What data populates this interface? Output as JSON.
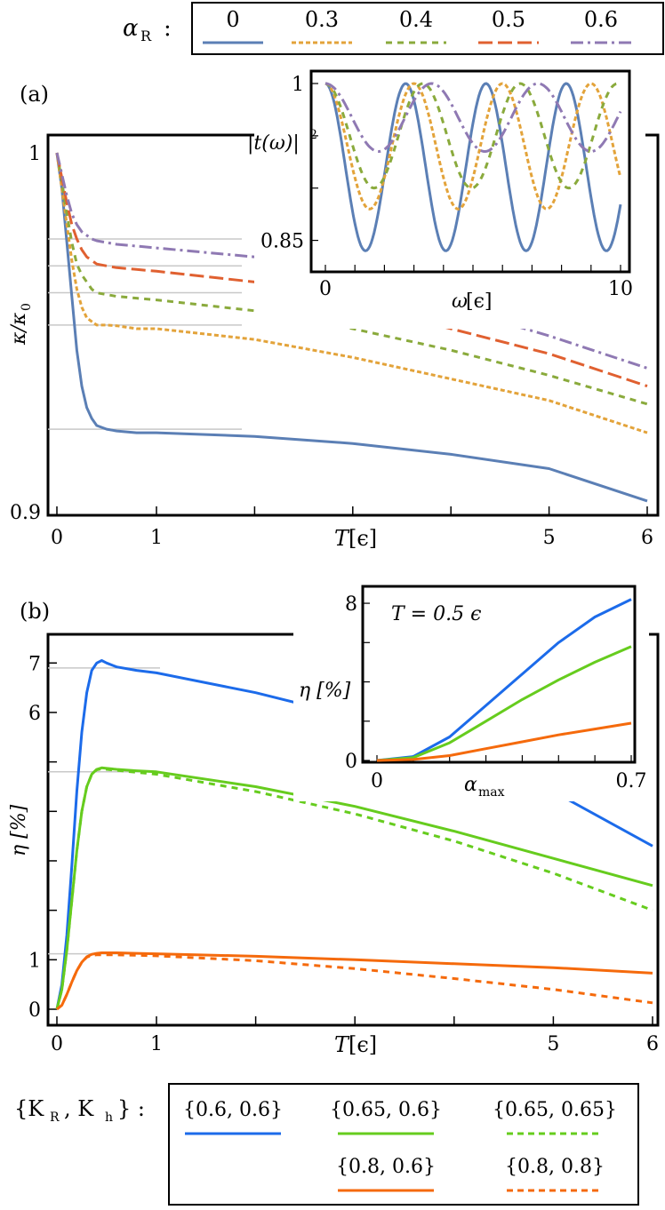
{
  "colors": {
    "blue_a": "#5b7fb5",
    "orange_a": "#e3a33a",
    "green_a": "#8aaa3c",
    "red_a": "#e06030",
    "purple_a": "#8f79b3",
    "blue_b": "#1c6bea",
    "green_b": "#66cc1e",
    "orange_b": "#f56a0c",
    "guide": "#c8c8c8"
  },
  "legend_top": {
    "symbol": "α",
    "subscript": "R",
    "colon": ":",
    "entries": [
      {
        "label": "0",
        "style": "solid",
        "color_key": "blue_a"
      },
      {
        "label": "0.3",
        "style": "dotted",
        "color_key": "orange_a"
      },
      {
        "label": "0.4",
        "style": "dashed",
        "color_key": "green_a"
      },
      {
        "label": "0.5",
        "style": "longdash",
        "color_key": "red_a"
      },
      {
        "label": "0.6",
        "style": "dashdot",
        "color_key": "purple_a"
      }
    ]
  },
  "legend_bottom": {
    "prefix": "{K",
    "sub1": "R",
    "mid": ", K",
    "sub2": "h",
    "suffix": "} :",
    "entries": [
      {
        "label": "{0.6, 0.6}",
        "style": "solid",
        "color_key": "blue_b"
      },
      {
        "label": "{0.65, 0.6}",
        "style": "solid",
        "color_key": "green_b"
      },
      {
        "label": "{0.65, 0.65}",
        "style": "dashed",
        "color_key": "green_b"
      },
      {
        "label": "{0.8, 0.6}",
        "style": "solid",
        "color_key": "orange_b"
      },
      {
        "label": "{0.8, 0.8}",
        "style": "dashed",
        "color_key": "orange_b"
      }
    ]
  },
  "chart_data": [
    {
      "type": "line",
      "panel_label": "(a)",
      "xlabel": "T",
      "xlabel_unit": "[ϵ]",
      "ylabel": "κ/κ",
      "ylabel_sub": "0",
      "x_scale": "piecewise: 0–1 linear, 1–6 compressed",
      "x_ticks": [
        "0",
        "1",
        "5",
        "6"
      ],
      "y_ticks": [
        "0.9",
        "1"
      ],
      "ylim": [
        0.9,
        1.0
      ],
      "series": [
        {
          "name": "0",
          "x": [
            0,
            0.05,
            0.1,
            0.15,
            0.2,
            0.25,
            0.3,
            0.35,
            0.4,
            0.5,
            0.6,
            0.8,
            1,
            2,
            3,
            4,
            5,
            6
          ],
          "y": [
            1.0,
            0.99,
            0.975,
            0.96,
            0.945,
            0.935,
            0.929,
            0.926,
            0.924,
            0.923,
            0.9225,
            0.922,
            0.922,
            0.921,
            0.919,
            0.916,
            0.912,
            0.903
          ]
        },
        {
          "name": "0.3",
          "x": [
            0,
            0.05,
            0.1,
            0.15,
            0.2,
            0.25,
            0.3,
            0.35,
            0.4,
            0.5,
            0.6,
            0.8,
            1,
            2,
            3,
            4,
            5,
            6
          ],
          "y": [
            1.0,
            0.99,
            0.98,
            0.97,
            0.962,
            0.957,
            0.954,
            0.953,
            0.952,
            0.952,
            0.9518,
            0.951,
            0.951,
            0.948,
            0.943,
            0.937,
            0.931,
            0.922
          ]
        },
        {
          "name": "0.4",
          "x": [
            0,
            0.05,
            0.1,
            0.15,
            0.2,
            0.25,
            0.3,
            0.35,
            0.4,
            0.5,
            0.6,
            0.8,
            1,
            2,
            3,
            4,
            5,
            6
          ],
          "y": [
            1.0,
            0.992,
            0.983,
            0.975,
            0.969,
            0.966,
            0.964,
            0.962,
            0.961,
            0.9605,
            0.96,
            0.9595,
            0.959,
            0.956,
            0.951,
            0.945,
            0.938,
            0.93
          ]
        },
        {
          "name": "0.5",
          "x": [
            0,
            0.05,
            0.1,
            0.15,
            0.2,
            0.25,
            0.3,
            0.35,
            0.4,
            0.5,
            0.6,
            0.8,
            1,
            2,
            3,
            4,
            5,
            6
          ],
          "y": [
            1.0,
            0.993,
            0.986,
            0.98,
            0.976,
            0.973,
            0.971,
            0.97,
            0.969,
            0.9685,
            0.968,
            0.9675,
            0.967,
            0.964,
            0.958,
            0.951,
            0.944,
            0.935
          ]
        },
        {
          "name": "0.6",
          "x": [
            0,
            0.05,
            0.1,
            0.15,
            0.2,
            0.25,
            0.3,
            0.35,
            0.4,
            0.5,
            0.6,
            0.8,
            1,
            2,
            3,
            4,
            5,
            6
          ],
          "y": [
            1.0,
            0.994,
            0.988,
            0.983,
            0.98,
            0.978,
            0.977,
            0.976,
            0.9755,
            0.975,
            0.9745,
            0.974,
            0.9735,
            0.971,
            0.965,
            0.957,
            0.949,
            0.94
          ]
        }
      ],
      "guides_y": [
        0.923,
        0.952,
        0.961,
        0.9685,
        0.976
      ]
    },
    {
      "type": "line",
      "panel_label": "inset (a)",
      "xlabel": "ω",
      "xlabel_unit": "[ϵ]",
      "ylabel": "|t(ω)|",
      "ylabel_sup": "2",
      "x_ticks": [
        "0",
        "10"
      ],
      "y_ticks": [
        "0.85",
        "1"
      ],
      "xlim": [
        0,
        10
      ],
      "ylim": [
        0.825,
        1.0
      ],
      "series": [
        {
          "name": "0",
          "period": 2.72,
          "min": 0.84
        },
        {
          "name": "0.3",
          "period": 3.0,
          "min": 0.88
        },
        {
          "name": "0.4",
          "period": 3.3,
          "min": 0.9
        },
        {
          "name": "0.6",
          "period": 3.6,
          "min": 0.935
        }
      ]
    },
    {
      "type": "line",
      "panel_label": "(b)",
      "xlabel": "T",
      "xlabel_unit": "[ϵ]",
      "ylabel": "η [%]",
      "x_scale": "piecewise: 0–1 linear, 1–6 compressed",
      "x_ticks": [
        "0",
        "1",
        "5",
        "6"
      ],
      "y_ticks": [
        "0",
        "1",
        "6",
        "7"
      ],
      "ylim": [
        0,
        7.4
      ],
      "series": [
        {
          "name": "{0.6, 0.6}",
          "x": [
            0,
            0.05,
            0.1,
            0.15,
            0.2,
            0.25,
            0.3,
            0.35,
            0.4,
            0.45,
            0.5,
            0.6,
            0.8,
            1,
            2,
            3,
            4,
            5,
            6
          ],
          "y": [
            0,
            0.5,
            1.5,
            2.9,
            4.4,
            5.6,
            6.4,
            6.85,
            7.0,
            7.05,
            7.0,
            6.92,
            6.85,
            6.8,
            6.4,
            5.9,
            5.2,
            4.4,
            3.3
          ]
        },
        {
          "name": "{0.65, 0.6}",
          "x": [
            0,
            0.05,
            0.1,
            0.15,
            0.2,
            0.25,
            0.3,
            0.35,
            0.4,
            0.45,
            0.5,
            0.6,
            0.8,
            1,
            2,
            3,
            4,
            5,
            6
          ],
          "y": [
            0,
            0.4,
            1.2,
            2.2,
            3.2,
            4.0,
            4.5,
            4.75,
            4.85,
            4.88,
            4.87,
            4.85,
            4.82,
            4.8,
            4.5,
            4.1,
            3.6,
            3.05,
            2.5
          ]
        },
        {
          "name": "{0.65, 0.65}",
          "x": [
            0,
            0.05,
            0.1,
            0.15,
            0.2,
            0.25,
            0.3,
            0.35,
            0.4,
            0.45,
            0.5,
            0.6,
            0.8,
            1,
            2,
            3,
            4,
            5,
            6
          ],
          "y": [
            0,
            0.4,
            1.2,
            2.2,
            3.2,
            4.0,
            4.5,
            4.75,
            4.84,
            4.86,
            4.85,
            4.83,
            4.79,
            4.75,
            4.4,
            3.95,
            3.4,
            2.75,
            2.0
          ]
        },
        {
          "name": "{0.8, 0.6}",
          "x": [
            0,
            0.05,
            0.1,
            0.15,
            0.2,
            0.25,
            0.3,
            0.35,
            0.4,
            0.45,
            0.5,
            0.6,
            0.8,
            1,
            2,
            3,
            4,
            5,
            6
          ],
          "y": [
            0,
            0.08,
            0.3,
            0.55,
            0.78,
            0.95,
            1.06,
            1.11,
            1.13,
            1.14,
            1.14,
            1.14,
            1.13,
            1.12,
            1.07,
            1.0,
            0.92,
            0.84,
            0.73
          ]
        },
        {
          "name": "{0.8, 0.8}",
          "x": [
            0,
            0.05,
            0.1,
            0.15,
            0.2,
            0.25,
            0.3,
            0.35,
            0.4,
            0.45,
            0.5,
            0.6,
            0.8,
            1,
            2,
            3,
            4,
            5,
            6
          ],
          "y": [
            0,
            0.08,
            0.3,
            0.55,
            0.78,
            0.95,
            1.05,
            1.09,
            1.1,
            1.1,
            1.1,
            1.1,
            1.09,
            1.08,
            0.98,
            0.82,
            0.62,
            0.4,
            0.13
          ]
        }
      ],
      "guides_y": [
        6.9,
        4.8,
        1.12
      ]
    },
    {
      "type": "line",
      "panel_label": "inset (b)",
      "annotation": "T = 0.5 ϵ",
      "xlabel": "α",
      "xlabel_sub": "max",
      "ylabel": "η [%]",
      "x_ticks": [
        "0",
        "0.7"
      ],
      "y_ticks": [
        "0",
        "8"
      ],
      "xlim": [
        0,
        0.7
      ],
      "ylim": [
        0,
        8.5
      ],
      "series": [
        {
          "name": "{0.6, 0.6}",
          "x": [
            0,
            0.1,
            0.2,
            0.3,
            0.4,
            0.5,
            0.6,
            0.7
          ],
          "y": [
            0,
            0.2,
            1.2,
            2.8,
            4.4,
            6.0,
            7.3,
            8.2
          ]
        },
        {
          "name": "{0.65, 0.6}",
          "x": [
            0,
            0.1,
            0.2,
            0.3,
            0.4,
            0.5,
            0.6,
            0.7
          ],
          "y": [
            0,
            0.15,
            0.9,
            2.0,
            3.1,
            4.1,
            5.0,
            5.8
          ]
        },
        {
          "name": "{0.8, 0.6}",
          "x": [
            0,
            0.1,
            0.2,
            0.3,
            0.4,
            0.5,
            0.6,
            0.7
          ],
          "y": [
            0,
            0.05,
            0.25,
            0.6,
            0.95,
            1.3,
            1.6,
            1.9
          ]
        }
      ]
    }
  ]
}
